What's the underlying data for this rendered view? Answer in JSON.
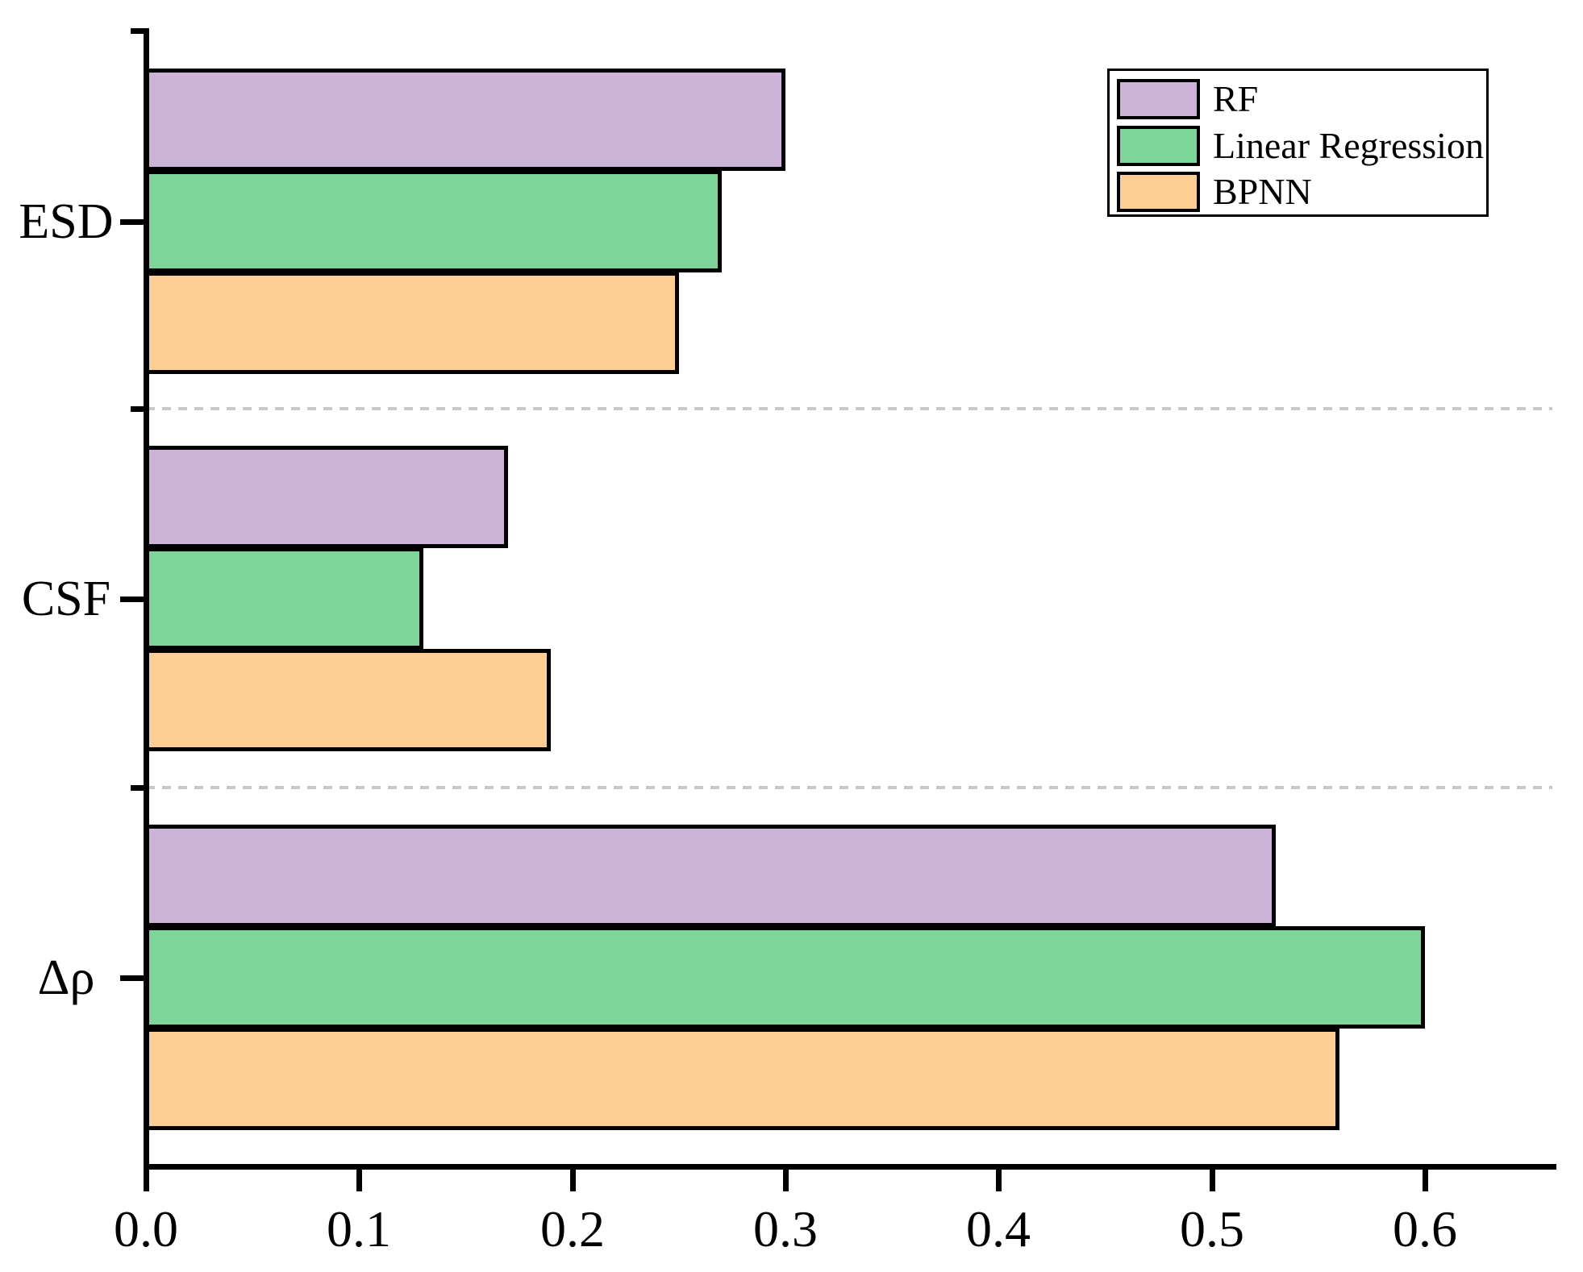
{
  "chart_data": {
    "type": "bar",
    "orientation": "horizontal",
    "title": "",
    "xlabel": "",
    "ylabel": "",
    "categories": [
      "ESD",
      "CSF",
      "Δρ"
    ],
    "series": [
      {
        "name": "RF",
        "color": "#CBB4D8",
        "values": [
          0.3,
          0.17,
          0.53
        ]
      },
      {
        "name": "Linear Regression",
        "color": "#7DD59A",
        "values": [
          0.27,
          0.13,
          0.6
        ]
      },
      {
        "name": "BPNN",
        "color": "#FFCE92",
        "values": [
          0.25,
          0.19,
          0.56
        ]
      }
    ],
    "x_axis": {
      "tick_labels": [
        "0.0",
        "0.1",
        "0.2",
        "0.3",
        "0.4",
        "0.5",
        "0.6"
      ],
      "tick_values": [
        0,
        0.1,
        0.2,
        0.3,
        0.4,
        0.5,
        0.6
      ],
      "range": [
        0,
        0.662
      ]
    },
    "legend": {
      "position": "top-right",
      "entries": [
        "RF",
        "Linear Regression",
        "BPNN"
      ]
    },
    "grid": false,
    "group_separators": "dashed gray horizontal lines between category groups",
    "colors": {
      "bar_border": "#000000",
      "axis": "#000000",
      "separator": "#C8C8C8",
      "background": "#FFFFFF"
    }
  }
}
